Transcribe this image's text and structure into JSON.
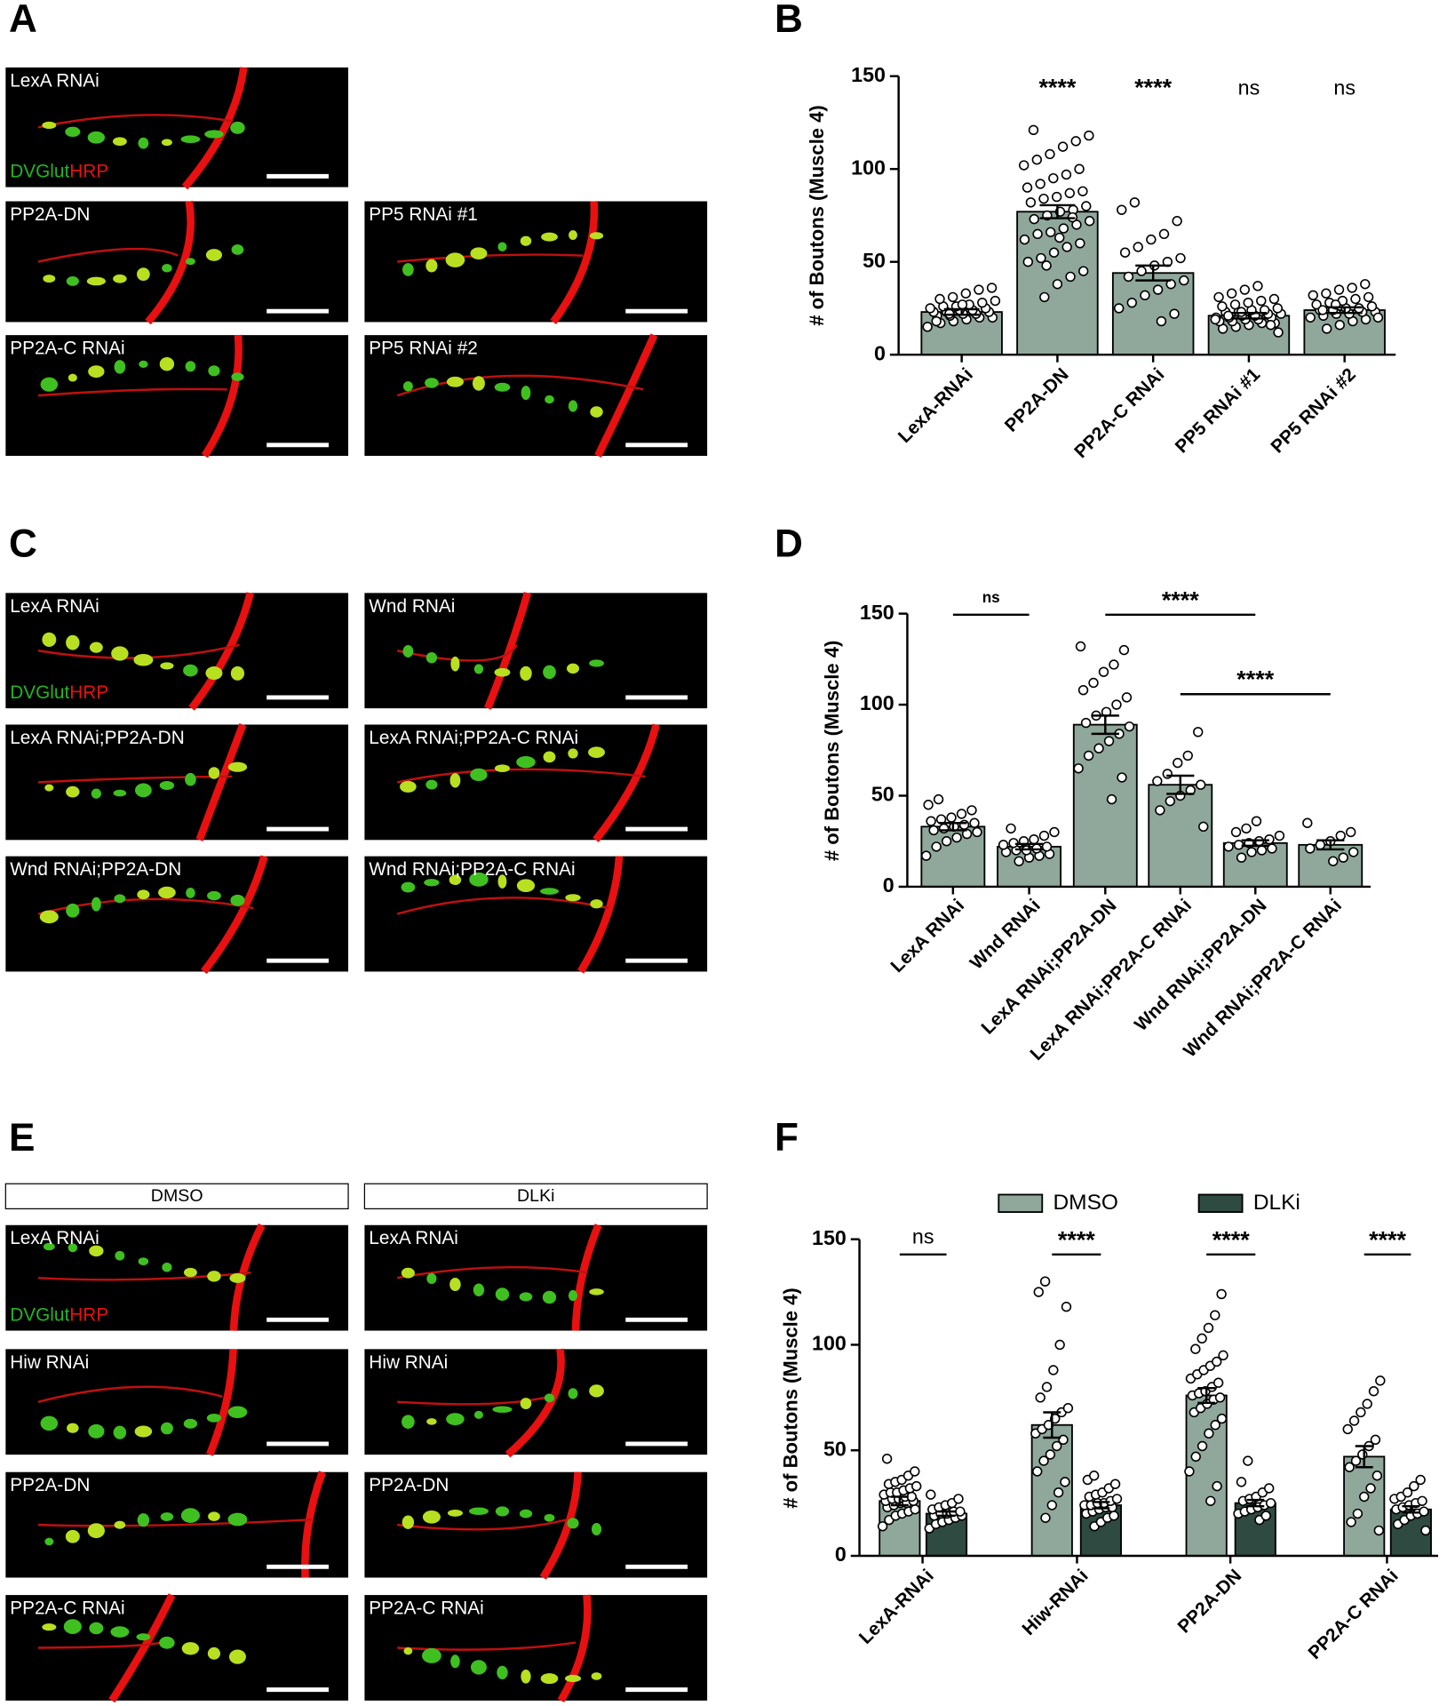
{
  "figure": {
    "panel_letters": [
      "A",
      "B",
      "C",
      "D",
      "E",
      "F"
    ],
    "stain_legend": {
      "green": "DVGlut",
      "red": "HRP"
    },
    "headers": [
      "DMSO",
      "DLKi"
    ],
    "images": [
      {
        "label": "LexA RNAi"
      },
      {
        "label": "PP2A-DN"
      },
      {
        "label": "PP5 RNAi #1"
      },
      {
        "label": "PP2A-C RNAi"
      },
      {
        "label": "PP5 RNAi #2"
      },
      {
        "label": "LexA RNAi"
      },
      {
        "label": "Wnd RNAi"
      },
      {
        "label": "LexA RNAi;PP2A-DN"
      },
      {
        "label": "LexA RNAi;PP2A-C RNAi"
      },
      {
        "label": "Wnd RNAi;PP2A-DN"
      },
      {
        "label": "Wnd RNAi;PP2A-C RNAi"
      },
      {
        "label": "LexA RNAi"
      },
      {
        "label": "LexA RNAi"
      },
      {
        "label": "Hiw RNAi"
      },
      {
        "label": "Hiw RNAi"
      },
      {
        "label": "PP2A-DN"
      },
      {
        "label": "PP2A-DN"
      },
      {
        "label": "PP2A-C RNAi"
      },
      {
        "label": "PP2A-C RNAi"
      }
    ]
  },
  "chart_data": [
    {
      "type": "bar",
      "ylabel": "# of  Boutons (Muscle 4)",
      "color": "#8fa89b",
      "categories": [
        "LexA-RNAi",
        "PP2A-DN",
        "PP2A-C RNAi",
        "PP5 RNAi #1",
        "PP5 RNAi #2"
      ],
      "values": [
        23,
        77,
        44,
        21,
        24
      ],
      "errors": [
        1.5,
        3.5,
        4,
        1.5,
        1.5
      ],
      "points": [
        [
          15,
          17,
          18,
          19,
          20,
          20,
          21,
          21,
          22,
          22,
          23,
          23,
          23,
          24,
          24,
          25,
          25,
          26,
          26,
          27,
          28,
          29,
          30,
          31,
          33,
          35,
          36,
          18,
          22,
          27
        ],
        [
          31,
          38,
          42,
          45,
          50,
          52,
          55,
          58,
          60,
          62,
          65,
          66,
          68,
          70,
          72,
          73,
          75,
          77,
          78,
          80,
          82,
          84,
          85,
          87,
          88,
          90,
          92,
          95,
          97,
          100,
          102,
          105,
          108,
          112,
          115,
          118,
          121,
          48,
          63,
          74
        ],
        [
          18,
          22,
          25,
          28,
          32,
          35,
          38,
          40,
          42,
          45,
          48,
          50,
          52,
          55,
          58,
          62,
          65,
          72,
          78,
          82
        ],
        [
          12,
          14,
          15,
          16,
          17,
          17,
          18,
          18,
          19,
          19,
          20,
          20,
          20,
          21,
          21,
          22,
          22,
          23,
          23,
          24,
          24,
          25,
          26,
          27,
          28,
          29,
          30,
          31,
          33,
          35,
          37,
          16,
          19,
          21,
          23
        ],
        [
          14,
          16,
          18,
          19,
          20,
          21,
          22,
          22,
          23,
          23,
          24,
          24,
          25,
          25,
          26,
          27,
          28,
          29,
          30,
          31,
          32,
          33,
          35,
          36,
          38,
          20,
          24,
          27
        ]
      ],
      "annotations": [
        "****",
        "****",
        "ns",
        "ns"
      ],
      "ylim": [
        0,
        150
      ],
      "yticks": [
        0,
        50,
        100,
        150
      ]
    },
    {
      "type": "bar",
      "ylabel": "# of  Boutons (Muscle 4)",
      "color": "#8fa89b",
      "categories": [
        "LexA RNAi",
        "Wnd RNAi",
        "LexA RNAi;PP2A-DN",
        "LexA RNAi;PP2A-C RNAi",
        "Wnd RNAi;PP2A-DN",
        "Wnd RNAi;PP2A-C RNAi"
      ],
      "values": [
        33,
        22,
        89,
        56,
        24,
        23
      ],
      "errors": [
        2,
        1.5,
        5,
        5,
        1.5,
        2.5
      ],
      "points": [
        [
          17,
          22,
          25,
          27,
          29,
          30,
          31,
          32,
          33,
          34,
          35,
          36,
          37,
          38,
          40,
          42,
          45,
          48
        ],
        [
          14,
          16,
          17,
          18,
          19,
          20,
          20,
          21,
          22,
          23,
          24,
          25,
          26,
          28,
          30,
          32
        ],
        [
          48,
          60,
          65,
          72,
          76,
          80,
          84,
          88,
          90,
          94,
          96,
          100,
          104,
          108,
          112,
          118,
          122,
          130,
          132
        ],
        [
          33,
          42,
          47,
          50,
          53,
          56,
          58,
          62,
          68,
          72,
          85
        ],
        [
          16,
          19,
          20,
          21,
          22,
          23,
          24,
          25,
          26,
          28,
          30,
          32,
          36
        ],
        [
          14,
          16,
          19,
          21,
          23,
          25,
          28,
          30,
          35
        ]
      ],
      "annotations": [
        "ns",
        "****",
        "****"
      ],
      "ylim": [
        0,
        150
      ],
      "yticks": [
        0,
        50,
        100,
        150
      ]
    },
    {
      "type": "bar",
      "ylabel": "# of  Boutons (Muscle 4)",
      "categories": [
        "LexA-RNAi",
        "Hiw-RNAi",
        "PP2A-DN",
        "PP2A-C RNAi"
      ],
      "series": [
        {
          "name": "DMSO",
          "color": "#8fa89b",
          "values": [
            26,
            62,
            76,
            47
          ],
          "errors": [
            2,
            6,
            3.5,
            5
          ],
          "points": [
            [
              14,
              17,
              19,
              20,
              21,
              22,
              23,
              24,
              25,
              25,
              26,
              26,
              27,
              27,
              28,
              28,
              29,
              30,
              30,
              31,
              32,
              33,
              34,
              35,
              36,
              38,
              40,
              46
            ],
            [
              18,
              24,
              30,
              35,
              40,
              45,
              48,
              52,
              55,
              58,
              60,
              62,
              65,
              68,
              70,
              75,
              80,
              88,
              100,
              118,
              125,
              130
            ],
            [
              26,
              33,
              40,
              47,
              52,
              58,
              62,
              65,
              68,
              70,
              72,
              74,
              75,
              76,
              77,
              78,
              80,
              82,
              84,
              86,
              88,
              90,
              92,
              95,
              98,
              103,
              108,
              114,
              124
            ],
            [
              12,
              16,
              20,
              28,
              32,
              38,
              42,
              45,
              48,
              52,
              55,
              60,
              64,
              68,
              72,
              78,
              83
            ]
          ]
        },
        {
          "name": "DLKi",
          "color": "#2f4a40",
          "values": [
            20,
            24,
            25,
            22
          ],
          "errors": [
            1,
            1.5,
            1.5,
            1.5
          ],
          "points": [
            [
              13,
              15,
              16,
              17,
              18,
              19,
              19,
              20,
              20,
              21,
              21,
              22,
              23,
              24,
              25,
              27,
              29
            ],
            [
              14,
              16,
              18,
              19,
              20,
              21,
              22,
              23,
              23,
              24,
              24,
              25,
              25,
              26,
              27,
              28,
              29,
              30,
              32,
              34,
              36,
              38
            ],
            [
              17,
              19,
              20,
              21,
              22,
              23,
              24,
              25,
              26,
              27,
              28,
              30,
              32,
              35,
              45
            ],
            [
              12,
              15,
              17,
              19,
              20,
              21,
              22,
              23,
              24,
              25,
              26,
              27,
              28,
              30,
              33,
              36
            ]
          ]
        }
      ],
      "annotations": [
        "ns",
        "****",
        "****",
        "****"
      ],
      "ylim": [
        0,
        150
      ],
      "yticks": [
        0,
        50,
        100,
        150
      ]
    }
  ]
}
